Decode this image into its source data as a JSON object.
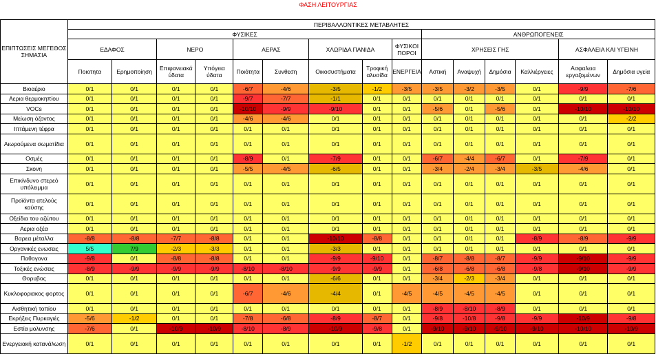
{
  "title": "ΦΑΣΗ ΛΕΙΤΟΥΡΓΙΑΣ",
  "corner": "ΕΠΙΠΤΩΣΕΙΣ ΜΕΓΕΘΟΣ ΣΗΜΑΣΙΑ",
  "header_top": "ΠΕΡΙΒΑΛΛΟΝΤΙΚΕΣ ΜΕΤΑΒΛΗΤΕΣ",
  "groups": {
    "physical": "ΦΥΣΙΚΕΣ",
    "human": "ΑΝΘΡΩΠΟΓΕΝΕΙΣ"
  },
  "subgroups": {
    "soil": "ΕΔΑΦΟΣ",
    "water": "ΝΕΡΟ",
    "air": "ΑΕΡΑΣ",
    "flora": "ΧΛΩΡΙΔΑ ΠΑΝΙΔΑ",
    "resources": "ΦΥΣΙΚΟΙ ΠΟΡΟΙ",
    "uses": "ΧΡΗΣΕΙΣ ΓΗΣ",
    "safety": "ΑΣΦΑΛΕΙΑ ΚΑΙ ΥΓΕΙΝΗ"
  },
  "columns": [
    "Ποιοτητα",
    "Ερημοποίηση",
    "Επιφανειακά ύδατα",
    "Υπόγεια ύδατα",
    "Ποιότητα",
    "Συνθεση",
    "Οικοσυστήματα",
    "Τροφική αλυσίδα",
    "ΕΝΕΡΓΕΙΑ",
    "Αστική",
    "Αναψυχή",
    "Δημόσια",
    "Καλλιέργειες",
    "Ασφαλεια εργαζομένων",
    "Δημόσια υγεία"
  ],
  "rows": [
    {
      "label": "Βιοαέριο",
      "values": [
        "0/1",
        "0/1",
        "0/1",
        "0/1",
        "-6/7",
        "-4/6",
        "-3/5",
        "-1/2",
        "-3/5",
        "-3/5",
        "-3/2",
        "-3/5",
        "0/1",
        "-9/9",
        "-7/6"
      ],
      "colors": [
        "cy",
        "cy",
        "cy",
        "cy",
        "cd",
        "co",
        "cg",
        "ca",
        "co",
        "co",
        "co",
        "co",
        "cy",
        "cr",
        "cd"
      ]
    },
    {
      "label": "Αερια θερμοκηπίου",
      "values": [
        "0/1",
        "0/1",
        "0/1",
        "0/1",
        "-9/7",
        "-7/7",
        "-1/1",
        "0/1",
        "0/1",
        "0/1",
        "0/1",
        "0/1",
        "0/1",
        "0/1",
        "0/1"
      ],
      "colors": [
        "cy",
        "cy",
        "cy",
        "cy",
        "cr",
        "cd",
        "cg",
        "cy",
        "cy",
        "cy",
        "cy",
        "cy",
        "cy",
        "cy",
        "cy"
      ]
    },
    {
      "label": "VOCs",
      "values": [
        "0/1",
        "0/1",
        "0/1",
        "0/1",
        "-10/10",
        "-9/9",
        "-9/10",
        "0/1",
        "0/1",
        "-5/6",
        "0/1",
        "-5/6",
        "0/1",
        "-10/10",
        "-10/10"
      ],
      "colors": [
        "cy",
        "cy",
        "cy",
        "cy",
        "ck",
        "cr",
        "cr",
        "cy",
        "cy",
        "co",
        "cy",
        "co",
        "cy",
        "ck",
        "ck"
      ]
    },
    {
      "label": "Μείωση όζοντος",
      "values": [
        "0/1",
        "0/1",
        "0/1",
        "0/1",
        "-4/6",
        "-4/6",
        "0/1",
        "0/1",
        "0/1",
        "0/1",
        "0/1",
        "0/1",
        "0/1",
        "0/1",
        "-2/2"
      ],
      "colors": [
        "cy",
        "cy",
        "cy",
        "cy",
        "co",
        "co",
        "cy",
        "cy",
        "cy",
        "cy",
        "cy",
        "cy",
        "cy",
        "cy",
        "ca"
      ]
    },
    {
      "label": "Ιπτάμενη τέφρα",
      "values": [
        "0/1",
        "0/1",
        "0/1",
        "0/1",
        "0/1",
        "0/1",
        "0/1",
        "0/1",
        "0/1",
        "0/1",
        "0/1",
        "0/1",
        "0/1",
        "0/1",
        "0/1"
      ],
      "colors": [
        "cy",
        "cy",
        "cy",
        "cy",
        "cy",
        "cy",
        "cy",
        "cy",
        "cy",
        "cy",
        "cy",
        "cy",
        "cy",
        "cy",
        "cy"
      ]
    },
    {
      "label": "Αιωρούμενα σωματίδια",
      "values": [
        "0/1",
        "0/1",
        "0/1",
        "0/1",
        "0/1",
        "0/1",
        "0/1",
        "0/1",
        "0/1",
        "0/1",
        "0/1",
        "0/1",
        "0/1",
        "0/1",
        "0/1"
      ],
      "colors": [
        "cy",
        "cy",
        "cy",
        "cy",
        "cy",
        "cy",
        "cy",
        "cy",
        "cy",
        "cy",
        "cy",
        "cy",
        "cy",
        "cy",
        "cy"
      ],
      "tall": true
    },
    {
      "label": "Οσμές",
      "values": [
        "0/1",
        "0/1",
        "0/1",
        "0/1",
        "-8/9",
        "0/1",
        "-7/9",
        "0/1",
        "0/1",
        "-6/7",
        "-4/4",
        "-6/7",
        "0/1",
        "-7/9",
        "0/1"
      ],
      "colors": [
        "cy",
        "cy",
        "cy",
        "cy",
        "cr",
        "cy",
        "cr",
        "cy",
        "cy",
        "cd",
        "co",
        "cd",
        "cy",
        "cr",
        "cy"
      ]
    },
    {
      "label": "Σκονη",
      "values": [
        "0/1",
        "0/1",
        "0/1",
        "0/1",
        "-5/5",
        "-4/5",
        "-6/5",
        "0/1",
        "0/1",
        "-3/4",
        "-2/4",
        "-3/4",
        "-3/5",
        "-4/6",
        "0/1"
      ],
      "colors": [
        "cy",
        "cy",
        "cy",
        "cy",
        "co",
        "co",
        "cg",
        "cy",
        "cy",
        "co",
        "co",
        "co",
        "cg",
        "co",
        "cy"
      ]
    },
    {
      "label": "Επικίνδυνο στερεό υπόλειμμα",
      "values": [
        "0/1",
        "0/1",
        "0/1",
        "0/1",
        "0/1",
        "0/1",
        "0/1",
        "0/1",
        "0/1",
        "0/1",
        "0/1",
        "0/1",
        "0/1",
        "0/1",
        "0/1"
      ],
      "colors": [
        "cy",
        "cy",
        "cy",
        "cy",
        "cy",
        "cy",
        "cy",
        "cy",
        "cy",
        "cy",
        "cy",
        "cy",
        "cy",
        "cy",
        "cy"
      ],
      "tall": true
    },
    {
      "label": "Προϊόντα ατελούς καύσης",
      "values": [
        "0/1",
        "0/1",
        "0/1",
        "0/1",
        "0/1",
        "0/1",
        "0/1",
        "0/1",
        "0/1",
        "0/1",
        "0/1",
        "0/1",
        "0/1",
        "0/1",
        "0/1"
      ],
      "colors": [
        "cy",
        "cy",
        "cy",
        "cy",
        "cy",
        "cy",
        "cy",
        "cy",
        "cy",
        "cy",
        "cy",
        "cy",
        "cy",
        "cy",
        "cy"
      ],
      "tall": true
    },
    {
      "label": "Οξείδια του αζώτου",
      "values": [
        "0/1",
        "0/1",
        "0/1",
        "0/1",
        "0/1",
        "0/1",
        "0/1",
        "0/1",
        "0/1",
        "0/1",
        "0/1",
        "0/1",
        "0/1",
        "0/1",
        "0/1"
      ],
      "colors": [
        "cy",
        "cy",
        "cy",
        "cy",
        "cy",
        "cy",
        "cy",
        "cy",
        "cy",
        "cy",
        "cy",
        "cy",
        "cy",
        "cy",
        "cy"
      ]
    },
    {
      "label": "Αερια οξέα",
      "values": [
        "0/1",
        "0/1",
        "0/1",
        "0/1",
        "0/1",
        "0/1",
        "0/1",
        "0/1",
        "0/1",
        "0/1",
        "0/1",
        "0/1",
        "0/1",
        "0/1",
        "0/1"
      ],
      "colors": [
        "cy",
        "cy",
        "cy",
        "cy",
        "cy",
        "cy",
        "cy",
        "cy",
        "cy",
        "cy",
        "cy",
        "cy",
        "cy",
        "cy",
        "cy"
      ]
    },
    {
      "label": "Βαρεα μέταλλα",
      "values": [
        "-8/8",
        "-8/8",
        "-7/7",
        "-8/8",
        "0/1",
        "0/1",
        "-10/10",
        "-8/8",
        "0/1",
        "0/1",
        "0/1",
        "0/1",
        "-8/9",
        "-8/9",
        "-9/9"
      ],
      "colors": [
        "cd",
        "cd",
        "cd",
        "cd",
        "cy",
        "cy",
        "ck",
        "cd",
        "cy",
        "cy",
        "cy",
        "cy",
        "cr",
        "cd",
        "cr"
      ]
    },
    {
      "label": "Οργανικές ενωσεις",
      "values": [
        "5/5",
        "7/9",
        "-2/3",
        "-3/3",
        "0/1",
        "0/1",
        "-3/3",
        "0/1",
        "0/1",
        "0/1",
        "0/1",
        "0/1",
        "0/1",
        "0/1",
        "0/1"
      ],
      "colors": [
        "cc",
        "cl",
        "ca",
        "ca",
        "cy",
        "cy",
        "cg",
        "cy",
        "cy",
        "cy",
        "cy",
        "cy",
        "cy",
        "cy",
        "cy"
      ]
    },
    {
      "label": "Παθογονα",
      "values": [
        "-9/8",
        "0/1",
        "-8/8",
        "-8/8",
        "0/1",
        "0/1",
        "-9/9",
        "-9/10",
        "0/1",
        "-8/7",
        "-8/8",
        "-8/7",
        "-9/9",
        "-9/10",
        "-9/9"
      ],
      "colors": [
        "cr",
        "cy",
        "cd",
        "cd",
        "cy",
        "cy",
        "cr",
        "cr",
        "cy",
        "cd",
        "cd",
        "cd",
        "cr",
        "ck",
        "cr"
      ]
    },
    {
      "label": "Τοξικές ενώσεις",
      "values": [
        "-8/9",
        "-9/9",
        "-9/9",
        "-9/9",
        "-8/10",
        "-8/10",
        "-9/9",
        "-9/9",
        "0/1",
        "-6/8",
        "-6/8",
        "-6/8",
        "-9/8",
        "-9/10",
        "-9/9"
      ],
      "colors": [
        "cr",
        "cr",
        "cr",
        "cr",
        "cr",
        "cr",
        "cr",
        "cr",
        "cy",
        "cd",
        "cd",
        "cd",
        "cr",
        "ck",
        "cr"
      ]
    },
    {
      "label": "Θορυβος",
      "values": [
        "0/1",
        "0/1",
        "0/1",
        "0/1",
        "0/1",
        "0/1",
        "-6/6",
        "0/1",
        "0/1",
        "-3/4",
        "-2/3",
        "-3/4",
        "0/1",
        "0/1",
        "0/1"
      ],
      "colors": [
        "cy",
        "cy",
        "cy",
        "cy",
        "cy",
        "cy",
        "cg",
        "cy",
        "cy",
        "co",
        "ca",
        "co",
        "cy",
        "cy",
        "cy"
      ]
    },
    {
      "label": "Κυκλοφοριακος φορτος",
      "values": [
        "0/1",
        "0/1",
        "0/1",
        "0/1",
        "-6/7",
        "-4/6",
        "-4/4",
        "0/1",
        "-4/5",
        "-4/5",
        "-4/5",
        "-4/5",
        "0/1",
        "0/1",
        "0/1"
      ],
      "colors": [
        "cy",
        "cy",
        "cy",
        "cy",
        "cd",
        "co",
        "cg",
        "cy",
        "co",
        "co",
        "co",
        "co",
        "cy",
        "cy",
        "cy"
      ],
      "tall": true
    },
    {
      "label": "Αισθητική τοπίου",
      "values": [
        "0/1",
        "0/1",
        "0/1",
        "0/1",
        "0/1",
        "0/1",
        "0/1",
        "0/1",
        "0/1",
        "-8/9",
        "-8/10",
        "-8/9",
        "0/1",
        "0/1",
        "0/1"
      ],
      "colors": [
        "cy",
        "cy",
        "cy",
        "cy",
        "cy",
        "cy",
        "cy",
        "cy",
        "cy",
        "cr",
        "cr",
        "cr",
        "cy",
        "cy",
        "cy"
      ]
    },
    {
      "label": "Εκρήξεις Πυρκαγιές",
      "values": [
        "-5/6",
        "-1/2",
        "0/1",
        "0/1",
        "-7/8",
        "-6/8",
        "-8/9",
        "-8/7",
        "0/1",
        "-9/8",
        "-10/8",
        "-9/8",
        "-9/9",
        "-10/9",
        "-9/8"
      ],
      "colors": [
        "co",
        "ca",
        "cy",
        "cy",
        "cd",
        "cd",
        "cr",
        "cd",
        "cy",
        "cr",
        "cr",
        "cr",
        "cr",
        "ck",
        "cr"
      ]
    },
    {
      "label": "Εστία μολυνσης",
      "values": [
        "-7/6",
        "0/1",
        "-10/9",
        "-10/9",
        "-8/10",
        "-8/9",
        "-10/9",
        "-9/8",
        "0/1",
        "-9/10",
        "-9/10",
        "-9/10",
        "-9/10",
        "-10/10",
        "-10/9"
      ],
      "colors": [
        "cd",
        "cy",
        "ck",
        "ck",
        "cr",
        "cr",
        "ck",
        "cr",
        "cy",
        "ck",
        "ck",
        "ck",
        "ck",
        "ck",
        "ck"
      ]
    },
    {
      "label": "Ενεργειακή κατανάλωση",
      "values": [
        "0/1",
        "0/1",
        "0/1",
        "0/1",
        "0/1",
        "0/1",
        "0/1",
        "0/1",
        "-1/2",
        "0/1",
        "0/1",
        "0/1",
        "0/1",
        "0/1",
        "0/1"
      ],
      "colors": [
        "cy",
        "cy",
        "cy",
        "cy",
        "cy",
        "cy",
        "cy",
        "cy",
        "ca",
        "cy",
        "cy",
        "cy",
        "cy",
        "cy",
        "cy"
      ],
      "tall": true
    }
  ]
}
